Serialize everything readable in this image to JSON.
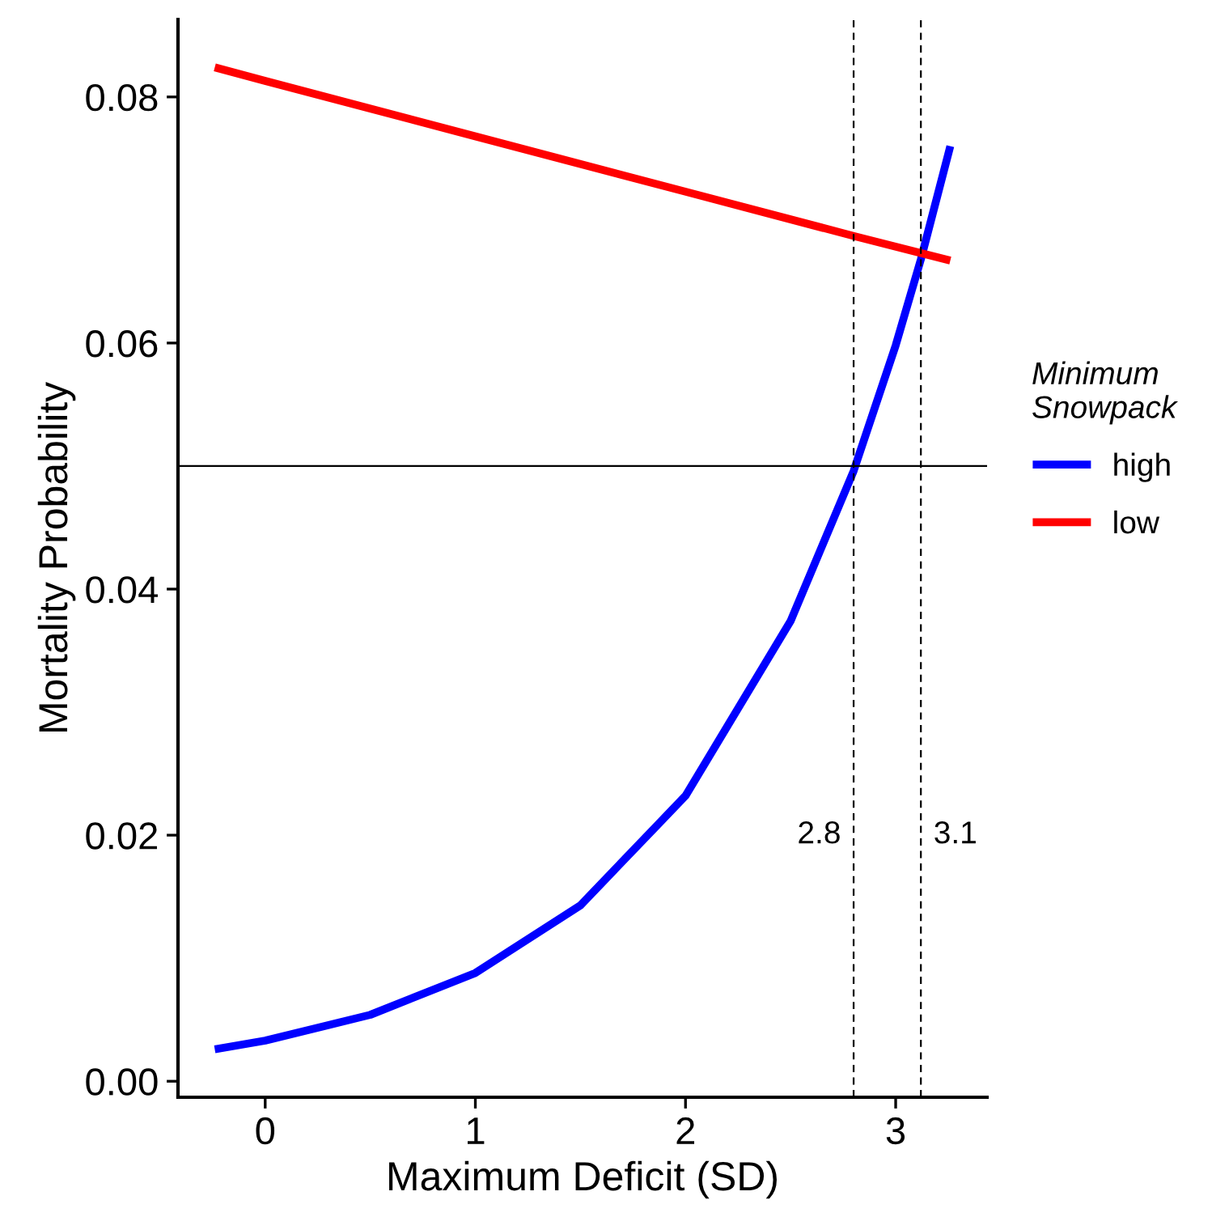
{
  "chart_data": {
    "type": "line",
    "xlabel": "Maximum Deficit (SD)",
    "ylabel": "Mortality Probability",
    "legend_title": "Minimum\nSnowpack",
    "legend": "right",
    "series": [
      {
        "name": "high",
        "color": "#0000ff",
        "x": [
          -0.24,
          0,
          0.5,
          1,
          1.5,
          2,
          2.5,
          2.8,
          3,
          3.12,
          3.26
        ],
        "values": [
          0.0026,
          0.0033,
          0.0054,
          0.0088,
          0.0143,
          0.0232,
          0.0374,
          0.0496,
          0.0598,
          0.0668,
          0.076
        ]
      },
      {
        "name": "low",
        "color": "#ff0000",
        "x": [
          -0.24,
          0,
          1,
          2,
          2.8,
          3.26
        ],
        "values": [
          0.0824,
          0.0813,
          0.0768,
          0.0723,
          0.0687,
          0.0667
        ]
      }
    ],
    "xlim": [
      -0.415,
      3.435
    ],
    "ylim": [
      -0.0013,
      0.0863
    ],
    "xticks": [
      0,
      1,
      2,
      3
    ],
    "yticks": [
      {
        "value": 0,
        "label": "0.00"
      },
      {
        "value": 0.02,
        "label": "0.02"
      },
      {
        "value": 0.04,
        "label": "0.04"
      },
      {
        "value": 0.06,
        "label": "0.06"
      },
      {
        "value": 0.08,
        "label": "0.08"
      }
    ],
    "ref_lines": [
      {
        "axis": "y",
        "value": 0.05,
        "color": "#000000",
        "line_style": "solid"
      },
      {
        "axis": "x",
        "value": 2.8,
        "label": "2.8",
        "color": "#000000",
        "line_style": "dashed"
      },
      {
        "axis": "x",
        "value": 3.12,
        "label": "3.1",
        "color": "#000000",
        "line_style": "dashed"
      }
    ],
    "grid": false
  }
}
